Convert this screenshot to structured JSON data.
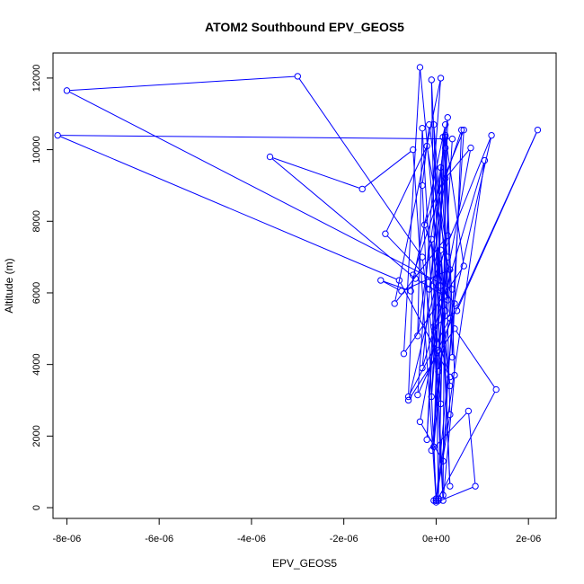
{
  "chart_data": {
    "type": "line",
    "title": "ATOM2 Southbound EPV_GEOS5",
    "xlabel": "EPV_GEOS5",
    "ylabel": "Altitude (m)",
    "xlim": [
      -8.3e-06,
      2.6e-06
    ],
    "ylim": [
      -300,
      12700
    ],
    "x_ticks": [
      {
        "value": -8e-06,
        "label": "-8e-06"
      },
      {
        "value": -6e-06,
        "label": "-6e-06"
      },
      {
        "value": -4e-06,
        "label": "-4e-06"
      },
      {
        "value": -2e-06,
        "label": "-2e-06"
      },
      {
        "value": 0,
        "label": "0e+00"
      },
      {
        "value": 2e-06,
        "label": "2e-06"
      }
    ],
    "y_ticks": [
      {
        "value": 0,
        "label": "0"
      },
      {
        "value": 2000,
        "label": "2000"
      },
      {
        "value": 4000,
        "label": "4000"
      },
      {
        "value": 6000,
        "label": "6000"
      },
      {
        "value": 8000,
        "label": "8000"
      },
      {
        "value": 10000,
        "label": "10000"
      },
      {
        "value": 12000,
        "label": "12000"
      }
    ],
    "series_color": "#0000ff",
    "x": [
      0.0,
      -5e-08,
      2e-07,
      1e-07,
      3e-07,
      -1e-07,
      5e-08,
      2.5e-07,
      -4e-07,
      -3e-07,
      1.5e-07,
      4e-07,
      2e-07,
      -2e-07,
      1e-07,
      3e-07,
      -6e-07,
      -5e-07,
      5.5e-07,
      3.5e-07,
      2e-07,
      1.5e-07,
      -1e-07,
      3e-07,
      -3.5e-07,
      -7e-07,
      6e-07,
      2e-07,
      -1e-07,
      1e-07,
      4e-07,
      0.0,
      -3e-07,
      -1.5e-07,
      2.5e-07,
      5e-08,
      -5e-08,
      1.5e-07,
      3e-07,
      0.0,
      -5e-07,
      -1.6e-06,
      -3.6e-06,
      -4.5e-07,
      2e-07,
      -1.1e-06,
      -2e-07,
      3.5e-07,
      -8e-06,
      -3e-06,
      -3e-07,
      1e-07,
      -5e-08,
      2.5e-07,
      -2.5e-07,
      6e-07,
      1.5e-07,
      -3.5e-07,
      7.5e-07,
      2e-07,
      -1.5e-07,
      1.2e-06,
      5e-08,
      3.5e-07,
      -8.2e-06,
      -8e-07,
      3e-07,
      -5e-08,
      4.5e-07,
      2.2e-06,
      -4e-07,
      1e-07,
      -9e-07,
      2.5e-07,
      -6e-07,
      4e-07,
      1.3e-06,
      0.0,
      8.5e-07,
      7e-07,
      -1e-07,
      3e-07,
      -7.5e-07,
      -1.2e-06,
      -5.5e-07,
      2e-07,
      -3e-07,
      1.05e-06,
      0.0,
      5e-08,
      -5e-08
    ],
    "y": [
      200,
      1700,
      5500,
      7200,
      600,
      11950,
      250,
      10900,
      4800,
      10600,
      200,
      3700,
      10350,
      1900,
      9500,
      5300,
      3100,
      6500,
      10550,
      4200,
      10050,
      350,
      7500,
      3400,
      12300,
      4300,
      6750,
      10400,
      3100,
      6200,
      5700,
      200,
      9000,
      10700,
      7000,
      4400,
      1700,
      10350,
      2600,
      200,
      10000,
      8900,
      9800,
      6400,
      5900,
      7650,
      10100,
      6100,
      11650,
      12050,
      7000,
      2900,
      10700,
      5800,
      7900,
      10550,
      1300,
      2400,
      10050,
      9200,
      6100,
      10400,
      3800,
      10300,
      10400,
      6350,
      3650,
      5050,
      5500,
      10550,
      3150,
      12000,
      5700,
      7600,
      3000,
      5000,
      3300,
      150,
      600,
      2700,
      1600,
      6650,
      6050,
      6350,
      6050,
      10700,
      3900,
      9700,
      250,
      200,
      200
    ]
  }
}
